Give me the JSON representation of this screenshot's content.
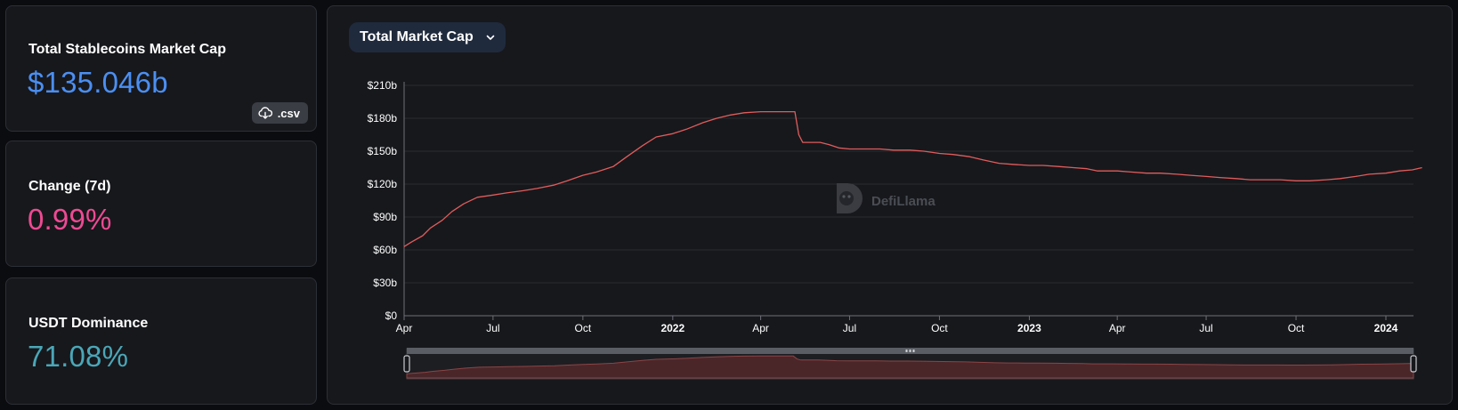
{
  "stats": {
    "market_cap": {
      "label": "Total Stablecoins Market Cap",
      "value": "$135.046b",
      "color": "#4b8ff2"
    },
    "csv_label": ".csv",
    "change": {
      "label": "Change (7d)",
      "value": "0.99%",
      "color": "#ee4a93"
    },
    "dominance": {
      "label": "USDT Dominance",
      "value": "71.08%",
      "color": "#4aa7b8"
    }
  },
  "chart_header": {
    "dropdown_label": "Total Market Cap",
    "dropdown_icon": "chevron-down-icon"
  },
  "watermark": {
    "text": "DefiLlama"
  },
  "colors": {
    "line": "#e05c5c",
    "grid": "#2a2c31",
    "axis_text": "#ffffff"
  },
  "chart_data": {
    "type": "line",
    "title": "",
    "xlabel": "",
    "ylabel": "",
    "ylim": [
      0,
      210
    ],
    "y_ticks": [
      0,
      30,
      60,
      90,
      120,
      150,
      180,
      210
    ],
    "y_tick_labels": [
      "$0",
      "$30b",
      "$60b",
      "$90b",
      "$120b",
      "$150b",
      "$180b",
      "$210b"
    ],
    "x_ticks": [
      "2021-04-01",
      "2021-07-01",
      "2021-10-01",
      "2022-01-01",
      "2022-04-01",
      "2022-07-01",
      "2022-10-01",
      "2023-01-01",
      "2023-04-01",
      "2023-07-01",
      "2023-10-01",
      "2024-01-01"
    ],
    "x_tick_labels": [
      "Apr",
      "Jul",
      "Oct",
      "2022",
      "Apr",
      "Jul",
      "Oct",
      "2023",
      "Apr",
      "Jul",
      "Oct",
      "2024"
    ],
    "x_tick_bold": [
      false,
      false,
      false,
      true,
      false,
      false,
      false,
      true,
      false,
      false,
      false,
      true
    ],
    "grid": true,
    "series": [
      {
        "name": "",
        "unit": "$b",
        "points": [
          [
            "2021-04-01",
            63
          ],
          [
            "2021-04-08",
            67
          ],
          [
            "2021-04-20",
            73
          ],
          [
            "2021-04-28",
            80
          ],
          [
            "2021-05-10",
            87
          ],
          [
            "2021-05-20",
            95
          ],
          [
            "2021-06-01",
            102
          ],
          [
            "2021-06-15",
            108
          ],
          [
            "2021-07-01",
            110
          ],
          [
            "2021-07-15",
            112
          ],
          [
            "2021-08-01",
            114
          ],
          [
            "2021-08-15",
            116
          ],
          [
            "2021-09-01",
            119
          ],
          [
            "2021-09-15",
            123
          ],
          [
            "2021-10-01",
            128
          ],
          [
            "2021-10-15",
            131
          ],
          [
            "2021-11-01",
            136
          ],
          [
            "2021-11-15",
            145
          ],
          [
            "2021-12-01",
            155
          ],
          [
            "2021-12-15",
            163
          ],
          [
            "2022-01-01",
            166
          ],
          [
            "2022-01-15",
            170
          ],
          [
            "2022-02-01",
            176
          ],
          [
            "2022-02-15",
            180
          ],
          [
            "2022-03-01",
            183
          ],
          [
            "2022-03-15",
            185
          ],
          [
            "2022-04-01",
            186
          ],
          [
            "2022-04-15",
            186
          ],
          [
            "2022-05-01",
            186
          ],
          [
            "2022-05-06",
            186
          ],
          [
            "2022-05-10",
            165
          ],
          [
            "2022-05-14",
            158
          ],
          [
            "2022-06-01",
            158
          ],
          [
            "2022-06-10",
            156
          ],
          [
            "2022-06-20",
            153
          ],
          [
            "2022-07-01",
            152
          ],
          [
            "2022-07-15",
            152
          ],
          [
            "2022-08-01",
            152
          ],
          [
            "2022-08-15",
            151
          ],
          [
            "2022-09-01",
            151
          ],
          [
            "2022-09-15",
            150
          ],
          [
            "2022-10-01",
            148
          ],
          [
            "2022-10-15",
            147
          ],
          [
            "2022-11-01",
            145
          ],
          [
            "2022-11-15",
            142
          ],
          [
            "2022-12-01",
            139
          ],
          [
            "2022-12-15",
            138
          ],
          [
            "2023-01-01",
            137
          ],
          [
            "2023-01-15",
            137
          ],
          [
            "2023-02-01",
            136
          ],
          [
            "2023-02-15",
            135
          ],
          [
            "2023-03-01",
            134
          ],
          [
            "2023-03-12",
            132
          ],
          [
            "2023-04-01",
            132
          ],
          [
            "2023-04-15",
            131
          ],
          [
            "2023-05-01",
            130
          ],
          [
            "2023-05-15",
            130
          ],
          [
            "2023-06-01",
            129
          ],
          [
            "2023-06-15",
            128
          ],
          [
            "2023-07-01",
            127
          ],
          [
            "2023-07-15",
            126
          ],
          [
            "2023-08-01",
            125
          ],
          [
            "2023-08-15",
            124
          ],
          [
            "2023-09-01",
            124
          ],
          [
            "2023-09-15",
            124
          ],
          [
            "2023-10-01",
            123
          ],
          [
            "2023-10-15",
            123
          ],
          [
            "2023-11-01",
            124
          ],
          [
            "2023-11-15",
            125
          ],
          [
            "2023-12-01",
            127
          ],
          [
            "2023-12-15",
            129
          ],
          [
            "2024-01-01",
            130
          ],
          [
            "2024-01-15",
            132
          ],
          [
            "2024-01-28",
            133
          ],
          [
            "2024-02-07",
            135
          ]
        ]
      }
    ]
  }
}
